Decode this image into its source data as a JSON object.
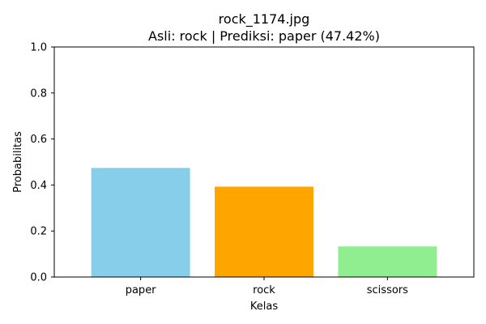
{
  "chart_data": {
    "type": "bar",
    "title": "rock_1174.jpg",
    "subtitle": "Asli: rock | Prediksi: paper (47.42%)",
    "xlabel": "Kelas",
    "ylabel": "Probabilitas",
    "categories": [
      "paper",
      "rock",
      "scissors"
    ],
    "values": [
      0.4742,
      0.3928,
      0.133
    ],
    "colors": [
      "#87ceeb",
      "#ffa500",
      "#90ee90"
    ],
    "ylim": [
      0,
      1.0
    ],
    "yticks": [
      "0.0",
      "0.2",
      "0.4",
      "0.6",
      "0.8",
      "1.0"
    ],
    "grid": false,
    "legend": "none"
  }
}
